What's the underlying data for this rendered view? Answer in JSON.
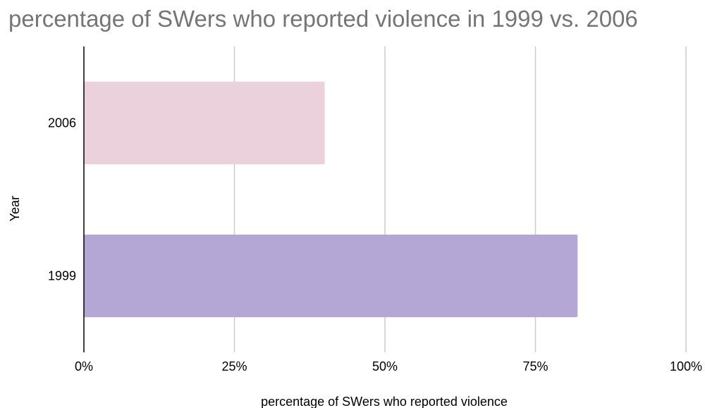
{
  "chart_data": {
    "type": "bar",
    "orientation": "horizontal",
    "title": "percentage of SWers who reported violence in 1999 vs. 2006",
    "xlabel": "percentage of SWers who reported violence",
    "ylabel": "Year",
    "categories": [
      "2006",
      "1999"
    ],
    "values": [
      40,
      82
    ],
    "colors": [
      "#ead1dc",
      "#b4a7d6"
    ],
    "xlim": [
      0,
      100
    ],
    "x_ticks": [
      "0%",
      "25%",
      "50%",
      "75%",
      "100%"
    ],
    "grid": true,
    "legend": "none"
  }
}
